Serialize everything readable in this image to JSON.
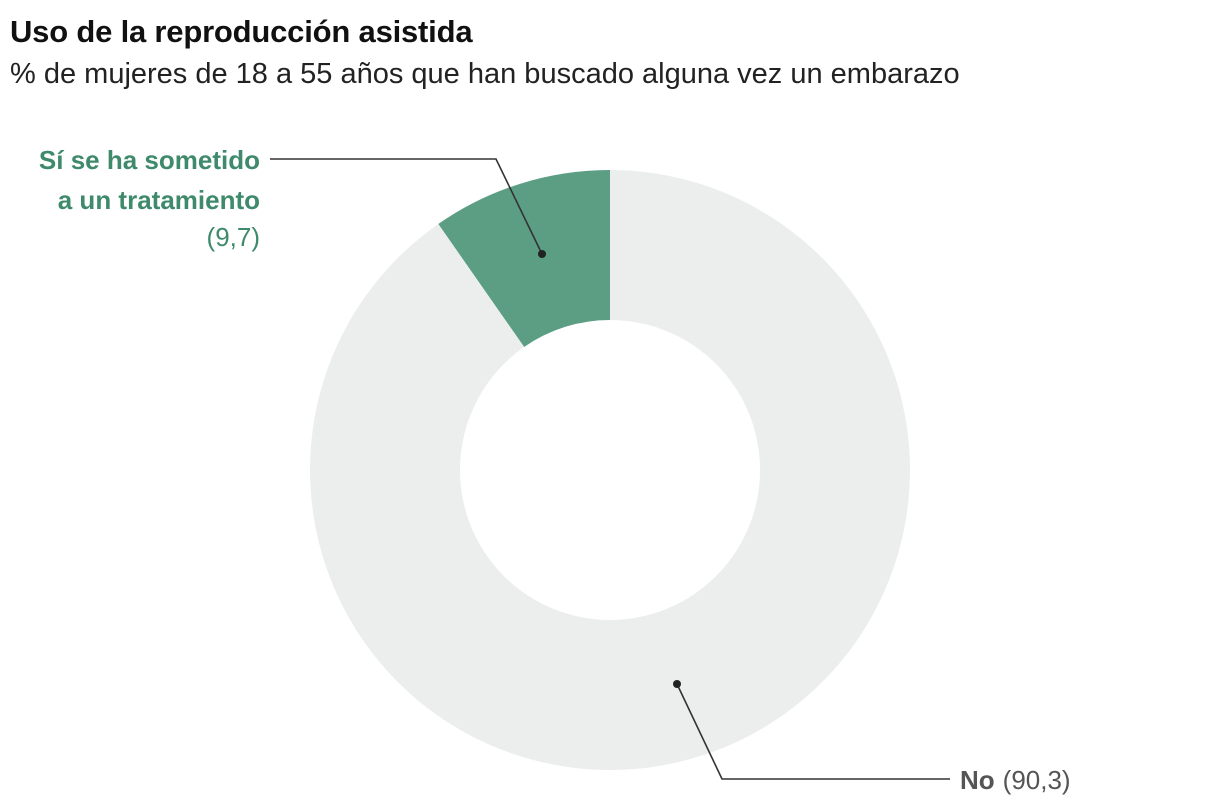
{
  "header": {
    "title": "Uso de la reproducción asistida",
    "subtitle": "% de mujeres de 18 a 55 años que han buscado alguna vez un embarazo"
  },
  "colors": {
    "yes": "#5c9e84",
    "no": "#eceeee",
    "leader": "#333333"
  },
  "chart_data": {
    "type": "pie",
    "donut": true,
    "title": "Uso de la reproducción asistida",
    "subtitle": "% de mujeres de 18 a 55 años que han buscado alguna vez un embarazo",
    "slices": [
      {
        "label_lines": [
          "Sí se ha sometido",
          "a un tratamiento"
        ],
        "value_text": "(9,7)",
        "value": 9.7
      },
      {
        "label_lines": [
          "No"
        ],
        "value_text": "(90,3)",
        "value": 90.3
      }
    ]
  }
}
